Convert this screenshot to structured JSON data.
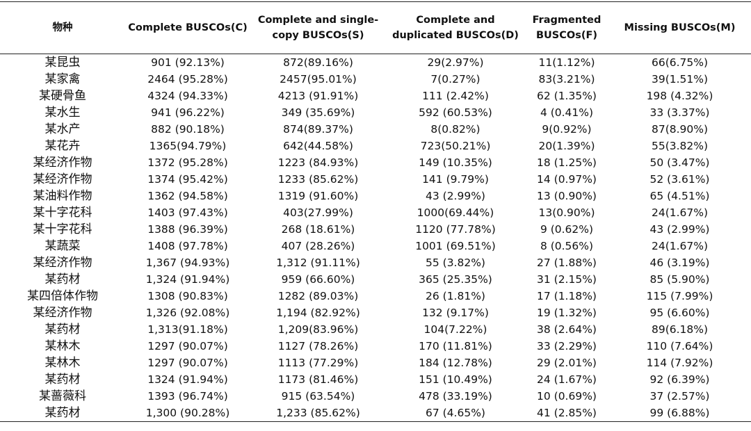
{
  "table": {
    "header": [
      "物种",
      "Complete BUSCOs(C)",
      "Complete and single-copy BUSCOs(S)",
      "Complete and duplicated BUSCOs(D)",
      "Fragmented BUSCOs(F)",
      "Missing BUSCOs(M)"
    ],
    "rows": [
      [
        "某昆虫",
        "901 (92.13%)",
        "872(89.16%)",
        "29(2.97%)",
        "11(1.12%)",
        "66(6.75%)"
      ],
      [
        "某家禽",
        "2464 (95.28%)",
        "2457(95.01%)",
        "7(0.27%)",
        "83(3.21%)",
        "39(1.51%)"
      ],
      [
        "某硬骨鱼",
        "4324 (94.33%)",
        "4213 (91.91%)",
        "111 (2.42%)",
        "62 (1.35%)",
        "198 (4.32%)"
      ],
      [
        "某水生",
        "941 (96.22%)",
        "349 (35.69%)",
        "592 (60.53%)",
        "4 (0.41%)",
        "33 (3.37%)"
      ],
      [
        "某水产",
        "882 (90.18%)",
        "874(89.37%)",
        "8(0.82%)",
        "9(0.92%)",
        "87(8.90%)"
      ],
      [
        "某花卉",
        "1365(94.79%)",
        "642(44.58%)",
        "723(50.21%)",
        "20(1.39%)",
        "55(3.82%)"
      ],
      [
        "某经济作物",
        "1372 (95.28%)",
        "1223 (84.93%)",
        "149 (10.35%)",
        "18 (1.25%)",
        "50 (3.47%)"
      ],
      [
        "某经济作物",
        "1374 (95.42%)",
        "1233 (85.62%)",
        "141 (9.79%)",
        "14 (0.97%)",
        "52 (3.61%)"
      ],
      [
        "某油料作物",
        "1362 (94.58%)",
        "1319 (91.60%)",
        "43 (2.99%)",
        "13 (0.90%)",
        "65 (4.51%)"
      ],
      [
        "某十字花科",
        "1403 (97.43%)",
        "403(27.99%)",
        "1000(69.44%)",
        "13(0.90%)",
        "24(1.67%)"
      ],
      [
        "某十字花科",
        "1388 (96.39%)",
        "268 (18.61%)",
        "1120 (77.78%)",
        "9 (0.62%)",
        "43 (2.99%)"
      ],
      [
        "某蔬菜",
        "1408 (97.78%)",
        "407 (28.26%)",
        "1001 (69.51%)",
        "8 (0.56%)",
        "24(1.67%)"
      ],
      [
        "某经济作物",
        "1,367 (94.93%)",
        "1,312 (91.11%)",
        "55 (3.82%)",
        "27 (1.88%)",
        "46 (3.19%)"
      ],
      [
        "某药材",
        "1,324 (91.94%)",
        "959 (66.60%)",
        "365 (25.35%)",
        "31 (2.15%)",
        "85 (5.90%)"
      ],
      [
        "某四倍体作物",
        "1308 (90.83%)",
        "1282 (89.03%)",
        "26 (1.81%)",
        "17 (1.18%)",
        "115 (7.99%)"
      ],
      [
        "某经济作物",
        "1,326 (92.08%)",
        "1,194 (82.92%)",
        "132 (9.17%)",
        "19 (1.32%)",
        "95 (6.60%)"
      ],
      [
        "某药材",
        "1,313(91.18%)",
        "1,209(83.96%)",
        "104(7.22%)",
        "38 (2.64%)",
        "89(6.18%)"
      ],
      [
        "某林木",
        "1297 (90.07%)",
        "1127 (78.26%)",
        "170 (11.81%)",
        "33 (2.29%)",
        "110 (7.64%)"
      ],
      [
        "某林木",
        "1297 (90.07%)",
        "1113 (77.29%)",
        "184 (12.78%)",
        "29 (2.01%)",
        "114 (7.92%)"
      ],
      [
        "某药材",
        "1324 (91.94%)",
        "1173 (81.46%)",
        "151 (10.49%)",
        "24 (1.67%)",
        "92 (6.39%)"
      ],
      [
        "某蔷薇科",
        "1393 (96.74%)",
        "915 (63.54%)",
        "478 (33.19%)",
        "10 (0.69%)",
        "37 (2.57%)"
      ],
      [
        "某药材",
        "1,300 (90.28%)",
        "1,233 (85.62%)",
        "67 (4.65%)",
        "41 (2.85%)",
        "99 (6.88%)"
      ]
    ]
  }
}
